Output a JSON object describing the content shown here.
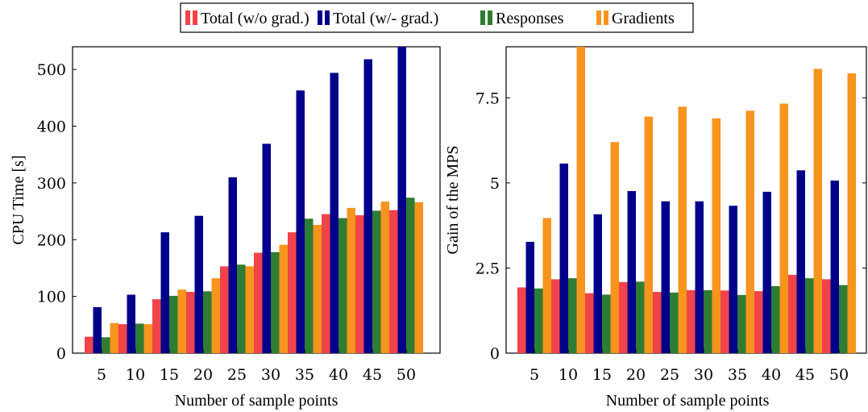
{
  "legend": {
    "items": [
      {
        "label": "Total (w/o grad.)",
        "color": "#f0434a"
      },
      {
        "label": "Total (w/- grad.)",
        "color": "#00008b"
      },
      {
        "label": "Responses",
        "color": "#2e7d32"
      },
      {
        "label": "Gradients",
        "color": "#f7941d"
      }
    ]
  },
  "chart_data": [
    {
      "type": "bar",
      "xlabel": "Number of sample points",
      "ylabel": "CPU Time [s]",
      "categories": [
        "5",
        "10",
        "15",
        "20",
        "25",
        "30",
        "35",
        "40",
        "45",
        "50"
      ],
      "ylim": [
        0,
        540
      ],
      "yticks": [
        0,
        100,
        200,
        300,
        400,
        500
      ],
      "ytick_labels": [
        "0",
        "100",
        "200",
        "300",
        "400",
        "500"
      ],
      "series": [
        {
          "name": "Total (w/o grad.)",
          "color": "#f0434a",
          "values": [
            29,
            51,
            95,
            108,
            153,
            177,
            213,
            245,
            243,
            252
          ]
        },
        {
          "name": "Total (w/- grad.)",
          "color": "#00008b",
          "values": [
            81,
            103,
            213,
            242,
            310,
            369,
            463,
            494,
            518,
            540
          ]
        },
        {
          "name": "Responses",
          "color": "#2e7d32",
          "values": [
            28,
            52,
            101,
            109,
            156,
            178,
            237,
            238,
            251,
            274
          ]
        },
        {
          "name": "Gradients",
          "color": "#f7941d",
          "values": [
            53,
            51,
            112,
            132,
            153,
            191,
            226,
            256,
            267,
            266
          ]
        }
      ]
    },
    {
      "type": "bar",
      "xlabel": "Number of sample points",
      "ylabel": "Gain of the MPS",
      "categories": [
        "5",
        "10",
        "15",
        "20",
        "25",
        "30",
        "35",
        "40",
        "45",
        "50"
      ],
      "ylim": [
        0,
        9
      ],
      "yticks": [
        0,
        2.5,
        5,
        7.5
      ],
      "ytick_labels": [
        "0",
        "2.5",
        "5",
        "7.5"
      ],
      "series": [
        {
          "name": "Total (w/o grad.)",
          "color": "#f0434a",
          "values": [
            1.93,
            2.17,
            1.76,
            2.09,
            1.8,
            1.85,
            1.84,
            1.82,
            2.3,
            2.17
          ]
        },
        {
          "name": "Total (w/- grad.)",
          "color": "#00008b",
          "values": [
            3.27,
            5.57,
            4.08,
            4.76,
            4.46,
            4.46,
            4.33,
            4.74,
            5.37,
            5.07
          ]
        },
        {
          "name": "Responses",
          "color": "#2e7d32",
          "values": [
            1.9,
            2.2,
            1.72,
            2.1,
            1.78,
            1.85,
            1.71,
            1.97,
            2.2,
            2.0
          ]
        },
        {
          "name": "Gradients",
          "color": "#f7941d",
          "values": [
            3.97,
            9.0,
            6.2,
            6.95,
            7.24,
            6.9,
            7.12,
            7.33,
            8.35,
            8.22
          ]
        }
      ]
    }
  ]
}
